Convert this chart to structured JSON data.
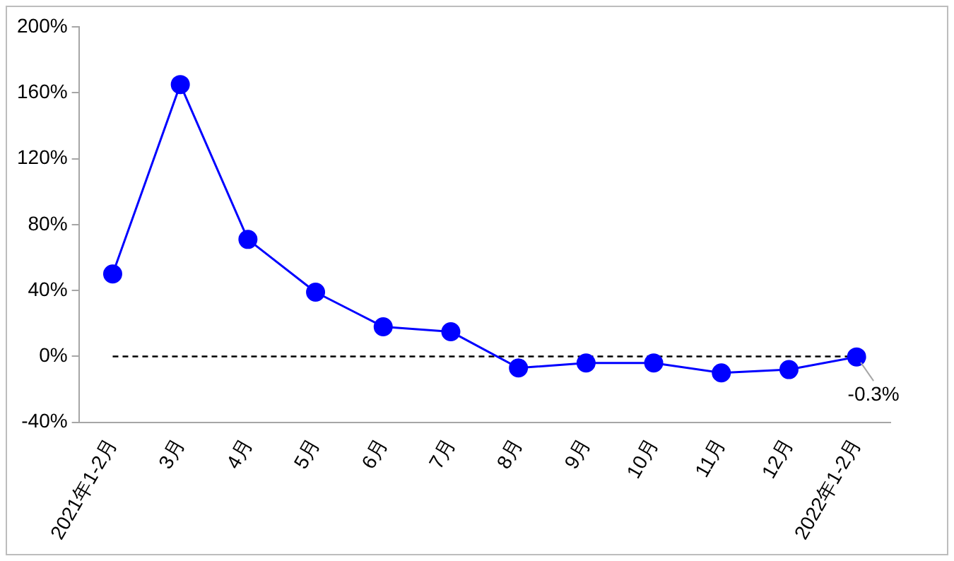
{
  "chart_data": {
    "type": "line",
    "categories": [
      "2021年1-2月",
      "3月",
      "4月",
      "5月",
      "6月",
      "7月",
      "8月",
      "9月",
      "10月",
      "11月",
      "12月",
      "2022年1-2月"
    ],
    "series": [
      {
        "color": "#0000ff",
        "values": [
          50,
          165,
          71,
          39,
          18,
          15,
          -7,
          -4,
          -4,
          -10,
          -8,
          -0.3
        ]
      }
    ],
    "ylim": [
      -40,
      200
    ],
    "yticks": [
      {
        "value": -40,
        "label": "-40%"
      },
      {
        "value": 0,
        "label": "0%"
      },
      {
        "value": 40,
        "label": "40%"
      },
      {
        "value": 80,
        "label": "80%"
      },
      {
        "value": 120,
        "label": "120%"
      },
      {
        "value": 160,
        "label": "160%"
      },
      {
        "value": 200,
        "label": "200%"
      }
    ],
    "ref_lines": [
      {
        "axis": "y",
        "value": 0,
        "color": "#000000",
        "line_style": "dashed"
      }
    ],
    "annotations": [
      {
        "text": "-0.3%",
        "x": "2022年1-2月",
        "y": -0.3
      }
    ],
    "marker": "circle",
    "grid": false,
    "legend": false
  }
}
